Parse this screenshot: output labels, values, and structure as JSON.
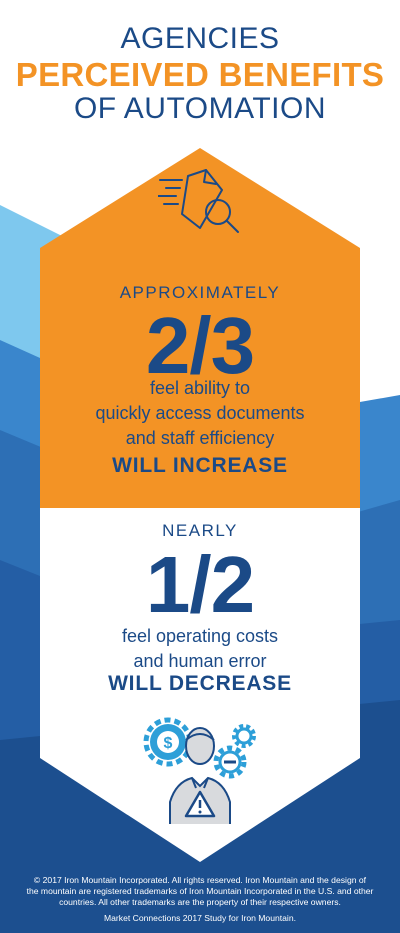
{
  "header": {
    "line1": "AGENCIES",
    "line2": "PERCEIVED BENEFITS",
    "line3": "OF AUTOMATION"
  },
  "stat_increase": {
    "qualifier": "APPROXIMATELY",
    "value": "2/3",
    "line1": "feel ability to",
    "line2": "quickly access documents",
    "line3": "and staff efficiency",
    "emphasis": "WILL INCREASE"
  },
  "stat_decrease": {
    "qualifier": "NEARLY",
    "value": "1/2",
    "line1": "feel operating costs",
    "line2": "and human error",
    "emphasis": "WILL DECREASE"
  },
  "footer": {
    "copyright_line1": "© 2017 Iron Mountain Incorporated. All rights reserved. Iron Mountain and the design of",
    "copyright_line2": "the mountain are registered trademarks of Iron Mountain Incorporated in the U.S. and other",
    "copyright_line3": "countries. All other trademarks are the property of their respective owners.",
    "source": "Market Connections 2017 Study for Iron Mountain."
  },
  "colors": {
    "navy": "#1b4a87",
    "orange": "#f39325",
    "light_blue": "#7ec8ee",
    "mid_blue": "#2d6fb5",
    "dark_blue": "#1f5597"
  },
  "icons": {
    "top": "document-search-icon",
    "bottom": "person-gears-alert-icon"
  }
}
